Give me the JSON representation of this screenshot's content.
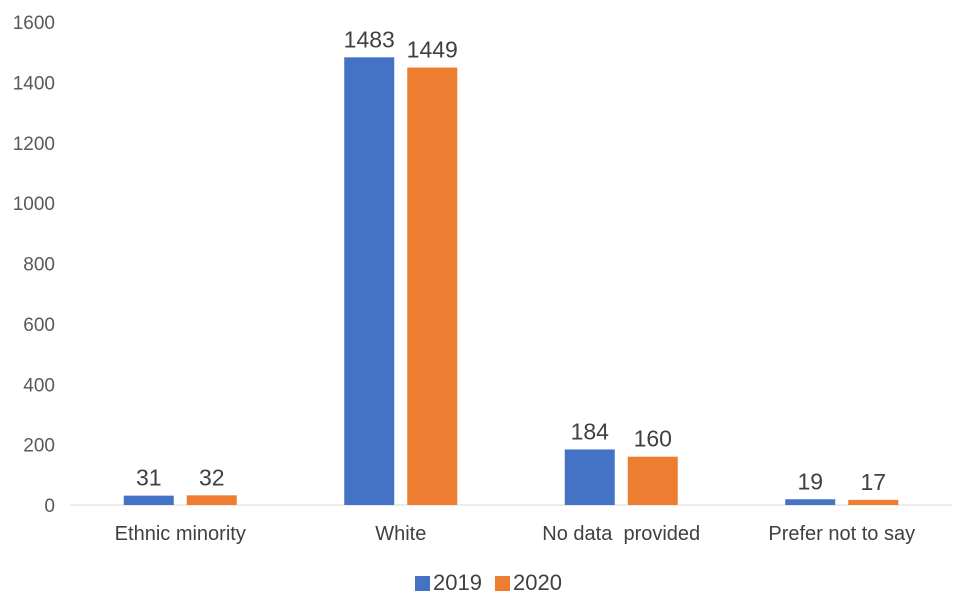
{
  "chart_data": {
    "type": "bar",
    "categories": [
      "Ethnic minority",
      "White",
      "No data  provided",
      "Prefer not to say"
    ],
    "series": [
      {
        "name": "2019",
        "values": [
          31,
          1483,
          184,
          19
        ],
        "color": "#4472C4"
      },
      {
        "name": "2020",
        "values": [
          32,
          1449,
          160,
          17
        ],
        "color": "#ED7D31"
      }
    ],
    "yticks": [
      0,
      200,
      400,
      600,
      800,
      1000,
      1200,
      1400,
      1600
    ],
    "ylim": [
      0,
      1600
    ],
    "grid": false,
    "legend_position": "bottom",
    "axis_color": "#D9D9D9"
  }
}
